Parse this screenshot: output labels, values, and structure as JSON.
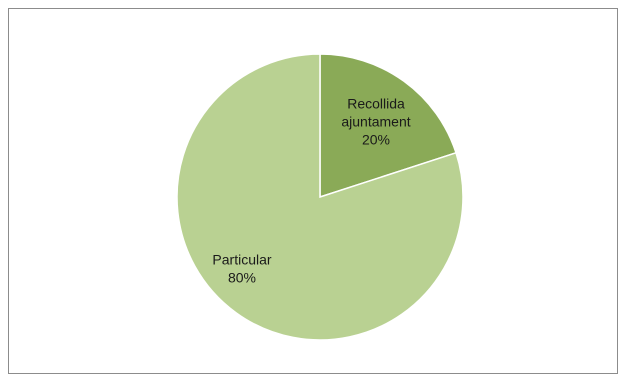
{
  "chart_data": {
    "type": "pie",
    "title": "",
    "slices": [
      {
        "label_lines": [
          "Recollida",
          "ajuntament"
        ],
        "value": 20,
        "value_label": "20%",
        "color": "#8aaa57"
      },
      {
        "label_lines": [
          "Particular"
        ],
        "value": 80,
        "value_label": "80%",
        "color": "#b9d192"
      }
    ],
    "start_angle_deg": 0,
    "direction": "clockwise",
    "legend": "none"
  }
}
